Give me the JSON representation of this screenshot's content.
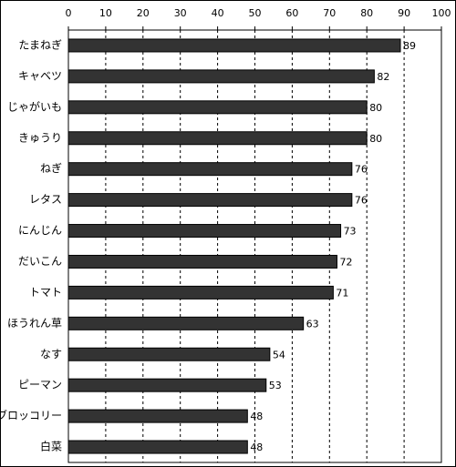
{
  "chart_data": {
    "type": "bar",
    "orientation": "horizontal",
    "categories": [
      "たまねぎ",
      "キャベツ",
      "じゃがいも",
      "きゅうり",
      "ねぎ",
      "レタス",
      "にんじん",
      "だいこん",
      "トマト",
      "ほうれん草",
      "なす",
      "ピーマン",
      "ブロッコリー",
      "白菜"
    ],
    "values": [
      89,
      82,
      80,
      80,
      76,
      76,
      73,
      72,
      71,
      63,
      54,
      53,
      48,
      48
    ],
    "color": "#333333",
    "xlim": [
      0,
      100
    ],
    "xticks": [
      0,
      10,
      20,
      30,
      40,
      50,
      60,
      70,
      80,
      90,
      100
    ],
    "grid": true
  }
}
